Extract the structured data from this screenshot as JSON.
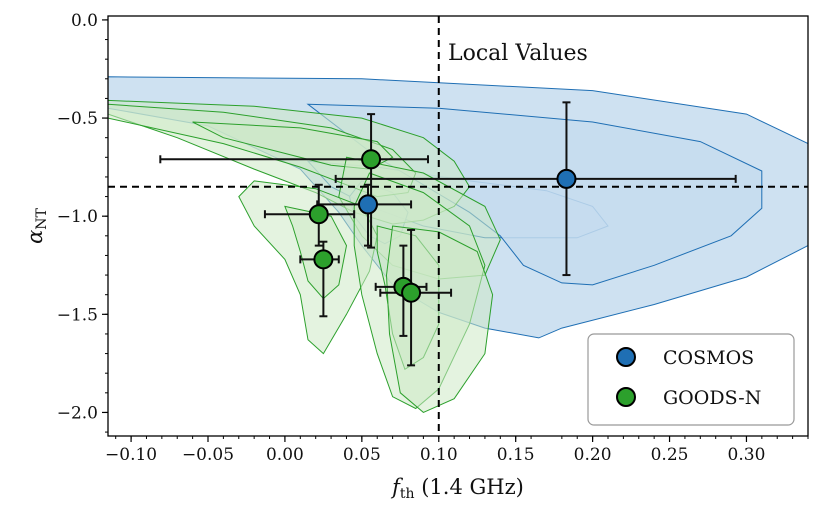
{
  "chart_data": {
    "type": "scatter",
    "title": "",
    "xlabel": "f_th (1.4 GHz)",
    "xlabel_main": "f",
    "xlabel_sub": "th",
    "xlabel_rest": " (1.4 GHz)",
    "ylabel": "α_NT",
    "ylabel_main": "α",
    "ylabel_sub": "NT",
    "xlim": [
      -0.115,
      0.34
    ],
    "ylim": [
      -2.12,
      0.02
    ],
    "xticks": [
      -0.1,
      -0.05,
      0.0,
      0.05,
      0.1,
      0.15,
      0.2,
      0.25,
      0.3
    ],
    "xtick_labels": [
      "−0.10",
      "−0.05",
      "0.00",
      "0.05",
      "0.10",
      "0.15",
      "0.20",
      "0.25",
      "0.30"
    ],
    "yticks": [
      0.0,
      -0.5,
      -1.0,
      -1.5,
      -2.0
    ],
    "ytick_labels": [
      "0.0",
      "−0.5",
      "−1.0",
      "−1.5",
      "−2.0"
    ],
    "reference_lines": {
      "x": 0.1,
      "y": -0.85,
      "label": "Local Values"
    },
    "legend_position": "bottom-right",
    "colors": {
      "cosmos": "#1f6fb4",
      "cosmos_fill": "#c6dcee",
      "goods": "#2ca02c",
      "goods_fill": "#cde9c6",
      "errorbar": "#111111"
    },
    "series": [
      {
        "name": "COSMOS",
        "points": [
          {
            "x": 0.183,
            "y": -0.81,
            "xerr": [
              0.15,
              0.11
            ],
            "yerr": [
              0.49,
              0.39
            ]
          },
          {
            "x": 0.054,
            "y": -0.94,
            "xerr": [
              0.033,
              0.028
            ],
            "yerr": [
              0.21,
              0.1
            ]
          }
        ],
        "contours": [
          [
            [
              -0.115,
              -0.29
            ],
            [
              0.05,
              -0.3
            ],
            [
              0.2,
              -0.36
            ],
            [
              0.3,
              -0.48
            ],
            [
              0.34,
              -0.63
            ],
            [
              0.34,
              -1.15
            ],
            [
              0.3,
              -1.31
            ],
            [
              0.24,
              -1.45
            ],
            [
              0.18,
              -1.57
            ],
            [
              0.165,
              -1.62
            ],
            [
              0.13,
              -1.57
            ],
            [
              0.1,
              -1.49
            ],
            [
              0.07,
              -1.35
            ],
            [
              0.05,
              -1.15
            ],
            [
              0.035,
              -0.98
            ],
            [
              0.01,
              -0.76
            ],
            [
              -0.05,
              -0.54
            ],
            [
              -0.115,
              -0.45
            ]
          ],
          [
            [
              0.015,
              -0.72
            ],
            [
              0.06,
              -0.75
            ],
            [
              0.12,
              -0.82
            ],
            [
              0.17,
              -0.87
            ],
            [
              0.2,
              -0.95
            ],
            [
              0.21,
              -1.05
            ],
            [
              0.19,
              -1.11
            ],
            [
              0.13,
              -1.11
            ],
            [
              0.09,
              -1.05
            ],
            [
              0.055,
              -0.95
            ],
            [
              0.03,
              -0.85
            ]
          ],
          [
            [
              0.015,
              -0.43
            ],
            [
              0.1,
              -0.45
            ],
            [
              0.2,
              -0.52
            ],
            [
              0.27,
              -0.62
            ],
            [
              0.31,
              -0.77
            ],
            [
              0.31,
              -0.96
            ],
            [
              0.29,
              -1.1
            ],
            [
              0.24,
              -1.25
            ],
            [
              0.2,
              -1.35
            ],
            [
              0.18,
              -1.34
            ],
            [
              0.155,
              -1.25
            ],
            [
              0.14,
              -1.1
            ],
            [
              0.12,
              -0.98
            ],
            [
              0.09,
              -0.84
            ],
            [
              0.06,
              -0.7
            ],
            [
              0.04,
              -0.58
            ]
          ],
          [
            [
              0.05,
              -0.82
            ],
            [
              0.07,
              -0.88
            ],
            [
              0.08,
              -0.98
            ],
            [
              0.075,
              -1.1
            ],
            [
              0.065,
              -1.14
            ],
            [
              0.055,
              -1.1
            ],
            [
              0.045,
              -1.0
            ],
            [
              0.042,
              -0.9
            ]
          ]
        ]
      },
      {
        "name": "GOODS-N",
        "points": [
          {
            "x": 0.056,
            "y": -0.71,
            "xerr": [
              0.137,
              0.037
            ],
            "yerr": [
              0.45,
              0.23
            ]
          },
          {
            "x": 0.022,
            "y": -0.99,
            "xerr": [
              0.035,
              0.023
            ],
            "yerr": [
              0.16,
              0.15
            ]
          },
          {
            "x": 0.025,
            "y": -1.22,
            "xerr": [
              0.015,
              0.01
            ],
            "yerr": [
              0.29,
              0.09
            ]
          },
          {
            "x": 0.077,
            "y": -1.36,
            "xerr": [
              0.018,
              0.015
            ],
            "yerr": [
              0.25,
              0.21
            ]
          },
          {
            "x": 0.082,
            "y": -1.39,
            "xerr": [
              0.02,
              0.026
            ],
            "yerr": [
              0.37,
              0.32
            ]
          }
        ],
        "contours": [
          [
            [
              -0.115,
              -0.41
            ],
            [
              -0.02,
              -0.44
            ],
            [
              0.05,
              -0.5
            ],
            [
              0.09,
              -0.6
            ],
            [
              0.11,
              -0.72
            ],
            [
              0.12,
              -0.85
            ],
            [
              0.11,
              -0.95
            ],
            [
              0.09,
              -1.02
            ],
            [
              0.07,
              -1.04
            ],
            [
              0.045,
              -0.98
            ],
            [
              0.02,
              -0.88
            ],
            [
              -0.02,
              -0.76
            ],
            [
              -0.07,
              -0.6
            ],
            [
              -0.115,
              -0.48
            ]
          ],
          [
            [
              -0.115,
              -0.43
            ],
            [
              -0.04,
              -0.47
            ],
            [
              0.03,
              -0.55
            ],
            [
              0.07,
              -0.66
            ],
            [
              0.085,
              -0.78
            ],
            [
              0.08,
              -0.88
            ],
            [
              0.06,
              -0.9
            ],
            [
              0.04,
              -0.84
            ],
            [
              0.01,
              -0.75
            ],
            [
              -0.04,
              -0.63
            ],
            [
              -0.115,
              -0.5
            ]
          ],
          [
            [
              -0.06,
              -0.52
            ],
            [
              0.01,
              -0.55
            ],
            [
              0.06,
              -0.62
            ],
            [
              0.07,
              -0.7
            ],
            [
              0.055,
              -0.76
            ],
            [
              0.03,
              -0.74
            ],
            [
              0.0,
              -0.68
            ],
            [
              -0.04,
              -0.6
            ]
          ],
          [
            [
              0.04,
              -0.7
            ],
            [
              0.09,
              -0.78
            ],
            [
              0.13,
              -0.95
            ],
            [
              0.14,
              -1.12
            ],
            [
              0.13,
              -1.3
            ],
            [
              0.1,
              -1.32
            ],
            [
              0.07,
              -1.25
            ],
            [
              0.05,
              -1.1
            ],
            [
              0.035,
              -0.9
            ]
          ],
          [
            [
              -0.02,
              -0.82
            ],
            [
              0.02,
              -0.86
            ],
            [
              0.05,
              -0.95
            ],
            [
              0.06,
              -1.1
            ],
            [
              0.055,
              -1.28
            ],
            [
              0.04,
              -1.5
            ],
            [
              0.025,
              -1.7
            ],
            [
              0.015,
              -1.63
            ],
            [
              0.01,
              -1.4
            ],
            [
              0.0,
              -1.22
            ],
            [
              -0.02,
              -1.05
            ],
            [
              -0.03,
              -0.9
            ]
          ],
          [
            [
              0.0,
              -0.95
            ],
            [
              0.03,
              -1.0
            ],
            [
              0.04,
              -1.15
            ],
            [
              0.035,
              -1.35
            ],
            [
              0.025,
              -1.42
            ],
            [
              0.015,
              -1.33
            ],
            [
              0.01,
              -1.18
            ],
            [
              0.005,
              -1.05
            ]
          ],
          [
            [
              0.055,
              -0.78
            ],
            [
              0.09,
              -0.88
            ],
            [
              0.12,
              -1.05
            ],
            [
              0.13,
              -1.25
            ],
            [
              0.12,
              -1.55
            ],
            [
              0.1,
              -1.88
            ],
            [
              0.085,
              -1.98
            ],
            [
              0.07,
              -1.92
            ],
            [
              0.06,
              -1.7
            ],
            [
              0.05,
              -1.4
            ],
            [
              0.045,
              -1.15
            ],
            [
              0.045,
              -0.95
            ]
          ],
          [
            [
              0.06,
              -1.05
            ],
            [
              0.085,
              -1.1
            ],
            [
              0.1,
              -1.25
            ],
            [
              0.1,
              -1.55
            ],
            [
              0.09,
              -1.72
            ],
            [
              0.078,
              -1.78
            ],
            [
              0.07,
              -1.6
            ],
            [
              0.065,
              -1.35
            ],
            [
              0.06,
              -1.18
            ]
          ],
          [
            [
              0.07,
              -1.05
            ],
            [
              0.1,
              -1.08
            ],
            [
              0.125,
              -1.18
            ],
            [
              0.135,
              -1.4
            ],
            [
              0.13,
              -1.7
            ],
            [
              0.11,
              -1.93
            ],
            [
              0.09,
              -2.0
            ],
            [
              0.075,
              -1.9
            ],
            [
              0.068,
              -1.6
            ],
            [
              0.066,
              -1.3
            ]
          ]
        ]
      }
    ]
  }
}
